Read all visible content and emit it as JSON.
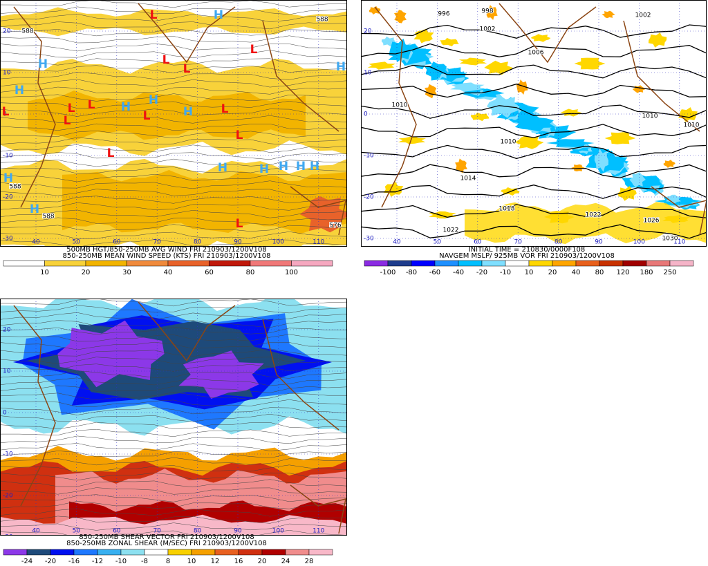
{
  "panels": [
    {
      "captions": [
        "500MB HGT/850-250MB AVG WIND FRI 210903/1200V108",
        "850-250MB MEAN WIND SPEED (KTS) FRI 210903/1200V108"
      ],
      "colorbar": {
        "labels": [
          "10",
          "20",
          "30",
          "40",
          "60",
          "80",
          "100"
        ],
        "colors": [
          "#ffffff",
          "#f8d23a",
          "#f2b400",
          "#f08a3c",
          "#e8622a",
          "#c0180a",
          "#f07878",
          "#f6a8c0"
        ]
      },
      "lat_labels": [
        "20",
        "10",
        "0",
        "-10",
        "-20",
        "-30"
      ],
      "lon_labels": [
        "40",
        "50",
        "60",
        "70",
        "80",
        "90",
        "100",
        "110"
      ],
      "markers": [
        "H",
        "H",
        "H",
        "H",
        "H",
        "H",
        "H",
        "H",
        "H",
        "H",
        "H",
        "H",
        "H",
        "H",
        "L",
        "L",
        "L",
        "L",
        "L",
        "L",
        "L",
        "L",
        "L",
        "L",
        "L",
        "L",
        "L"
      ],
      "contour_labels": [
        "588",
        "588",
        "588",
        "588",
        "576"
      ]
    },
    {
      "captions": [
        "INITIAL TIME = 210830/0000F108",
        "NAVGEM MSLP/ 925MB VOR FRI 210903/1200V108"
      ],
      "colorbar": {
        "labels": [
          "-100",
          "-80",
          "-60",
          "-40",
          "-20",
          "-10",
          "10",
          "20",
          "40",
          "80",
          "120",
          "180",
          "250"
        ],
        "colors": [
          "#8a2be2",
          "#1e3c8c",
          "#0000ff",
          "#1e90ff",
          "#00bfff",
          "#7fdfff",
          "#ffffff",
          "#ffd700",
          "#ffa500",
          "#e8601c",
          "#c83200",
          "#a00000",
          "#e87878",
          "#f5b4c8"
        ]
      },
      "lat_labels": [
        "20",
        "10",
        "0",
        "-10",
        "-20",
        "-30"
      ],
      "lon_labels": [
        "40",
        "50",
        "60",
        "70",
        "80",
        "90",
        "100",
        "110"
      ],
      "contour_labels": [
        "996",
        "998",
        "1002",
        "1006",
        "1010",
        "1014",
        "1018",
        "1022",
        "1022",
        "1026",
        "1030",
        "1002",
        "1010",
        "1010",
        "1010"
      ]
    },
    {
      "captions": [
        "850-250MB SHEAR VECTOR FRI 210903/1200V108",
        "850-250MB ZONAL SHEAR (M/SEC) FRI 210903/1200V108"
      ],
      "colorbar": {
        "labels": [
          "-24",
          "-20",
          "-16",
          "-12",
          "-10",
          "-8",
          "8",
          "10",
          "12",
          "16",
          "20",
          "24",
          "28"
        ],
        "colors": [
          "#8c38e8",
          "#1e4a7a",
          "#0010f0",
          "#1e78ff",
          "#38b0f0",
          "#8ce0f0",
          "#ffffff",
          "#f8d000",
          "#f5a000",
          "#e86020",
          "#d03010",
          "#b00000",
          "#f08c8c",
          "#f8b8c8"
        ]
      },
      "lat_labels": [
        "20",
        "10",
        "0",
        "-10",
        "-20",
        "-30"
      ],
      "lon_labels": [
        "40",
        "50",
        "60",
        "70",
        "80",
        "90",
        "100",
        "110"
      ]
    }
  ]
}
